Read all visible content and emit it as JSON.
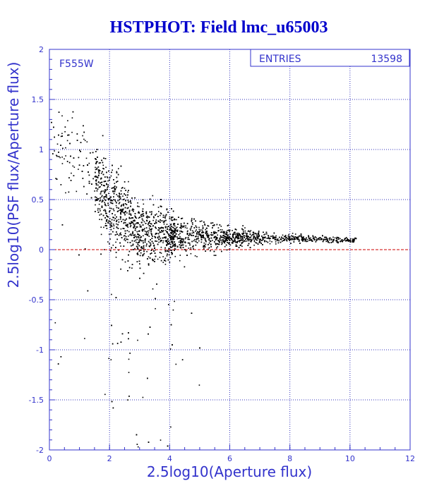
{
  "chart_data": {
    "type": "scatter",
    "title": "HSTPHOT: Field lmc_u65003",
    "xlabel": "2.5log10(Aperture flux)",
    "ylabel": "2.5log10(PSF flux/Aperture flux)",
    "filter_label": "F555W",
    "stats": {
      "label": "ENTRIES",
      "value": "13598"
    },
    "xlim": [
      0,
      12
    ],
    "ylim": [
      -2,
      2
    ],
    "xticks": [
      0,
      2,
      4,
      6,
      8,
      10,
      12
    ],
    "yticks": [
      -2,
      -1.5,
      -1,
      -0.5,
      0,
      0.5,
      1,
      1.5,
      2
    ],
    "xtick_labels": [
      "0",
      "2",
      "4",
      "6",
      "8",
      "10",
      "12"
    ],
    "ytick_labels": [
      "-2",
      "-1.5",
      "-1",
      "-0.5",
      "0",
      "0.5",
      "1",
      "1.5",
      "2"
    ],
    "grid": true,
    "reference_line": {
      "y": 0,
      "color": "#cc0000"
    },
    "colors": {
      "title": "#0000cc",
      "axis": "#3333cc",
      "grid": "#3333bb",
      "points": "#000000"
    },
    "point_summary": [
      {
        "x": 1,
        "y_center": 1.0,
        "y_spread": 0.6
      },
      {
        "x": 2,
        "y_center": 0.45,
        "y_spread": 0.6
      },
      {
        "x": 3,
        "y_center": 0.2,
        "y_spread": 0.55
      },
      {
        "x": 4,
        "y_center": 0.15,
        "y_spread": 0.35
      },
      {
        "x": 6,
        "y_center": 0.13,
        "y_spread": 0.15
      },
      {
        "x": 8,
        "y_center": 0.12,
        "y_spread": 0.06
      },
      {
        "x": 10,
        "y_center": 0.1,
        "y_spread": 0.04
      }
    ]
  }
}
